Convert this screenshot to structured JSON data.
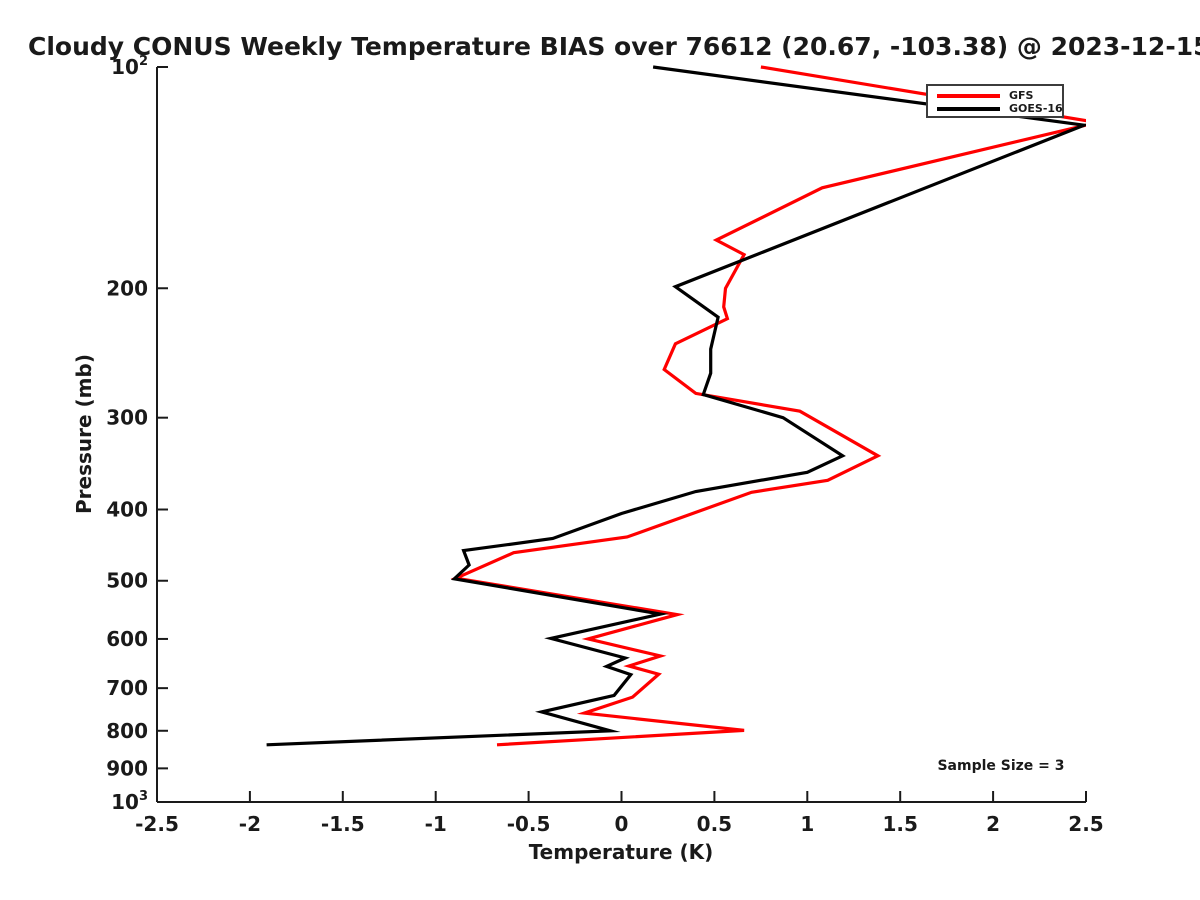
{
  "title": "Cloudy CONUS Weekly Temperature BIAS over 76612 (20.67, -103.38) @ 2023-12-15",
  "colors": {
    "gfs": "#ff0000",
    "goes16": "#000000",
    "axis": "#1a1a1a"
  },
  "legend": {
    "items": [
      "GFS",
      "GOES-16"
    ]
  },
  "annotation": {
    "sample_size_label": "Sample Size = 3"
  },
  "chart_data": {
    "type": "line",
    "title": "Cloudy CONUS Weekly Temperature BIAS over 76612 (20.67, -103.38) @ 2023-12-15",
    "xlabel": "Temperature (K)",
    "ylabel": "Pressure (mb)",
    "annotation": "Sample Size = 3",
    "xlim": [
      -2.5,
      2.5
    ],
    "ylim": [
      100,
      1000
    ],
    "yscale": "log",
    "y_axis_inverted": true,
    "grid": false,
    "legend_position": "top-right",
    "x_ticks": [
      -2.5,
      -2,
      -1.5,
      -1,
      -0.5,
      0,
      0.5,
      1,
      1.5,
      2,
      2.5
    ],
    "x_tick_labels": [
      "-2.5",
      "-2",
      "-1.5",
      "-1",
      "-0.5",
      "0",
      "0.5",
      "1",
      "1.5",
      "2",
      "2.5"
    ],
    "y_ticks": [
      100,
      200,
      300,
      400,
      500,
      600,
      700,
      800,
      900,
      1000
    ],
    "y_tick_labels": [
      "10^2",
      "200",
      "300",
      "400",
      "500",
      "600",
      "700",
      "800",
      "900",
      "10^3"
    ],
    "series": [
      {
        "name": "GFS",
        "color": "#ff0000",
        "points_format": [
          "temperature_bias_K",
          "pressure_mb"
        ],
        "points": [
          [
            0.75,
            100
          ],
          [
            2.56,
            119
          ],
          [
            1.08,
            146
          ],
          [
            0.51,
            172
          ],
          [
            0.66,
            180
          ],
          [
            0.56,
            200
          ],
          [
            0.55,
            212
          ],
          [
            0.57,
            220
          ],
          [
            0.29,
            238
          ],
          [
            0.23,
            258
          ],
          [
            0.4,
            278
          ],
          [
            0.96,
            294
          ],
          [
            1.38,
            338
          ],
          [
            1.11,
            365
          ],
          [
            0.7,
            379
          ],
          [
            0.03,
            436
          ],
          [
            -0.58,
            458
          ],
          [
            -0.89,
            496
          ],
          [
            0.3,
            556
          ],
          [
            -0.18,
            600
          ],
          [
            0.21,
            633
          ],
          [
            0.04,
            653
          ],
          [
            0.2,
            670
          ],
          [
            0.06,
            720
          ],
          [
            -0.2,
            757
          ],
          [
            0.66,
            799
          ],
          [
            -0.67,
            836
          ]
        ]
      },
      {
        "name": "GOES-16",
        "color": "#000000",
        "points_format": [
          "temperature_bias_K",
          "pressure_mb"
        ],
        "points": [
          [
            0.17,
            100
          ],
          [
            2.49,
            120
          ],
          [
            0.29,
            199
          ],
          [
            0.52,
            219
          ],
          [
            0.48,
            242
          ],
          [
            0.48,
            261
          ],
          [
            0.44,
            279
          ],
          [
            0.87,
            300
          ],
          [
            1.19,
            338
          ],
          [
            1.0,
            356
          ],
          [
            0.4,
            378
          ],
          [
            0.0,
            405
          ],
          [
            -0.37,
            438
          ],
          [
            -0.85,
            455
          ],
          [
            -0.82,
            476
          ],
          [
            -0.9,
            497
          ],
          [
            0.21,
            555
          ],
          [
            -0.38,
            599
          ],
          [
            0.02,
            637
          ],
          [
            -0.08,
            654
          ],
          [
            0.05,
            671
          ],
          [
            -0.04,
            716
          ],
          [
            -0.43,
            754
          ],
          [
            -0.06,
            800
          ],
          [
            -1.91,
            836
          ]
        ]
      }
    ]
  }
}
